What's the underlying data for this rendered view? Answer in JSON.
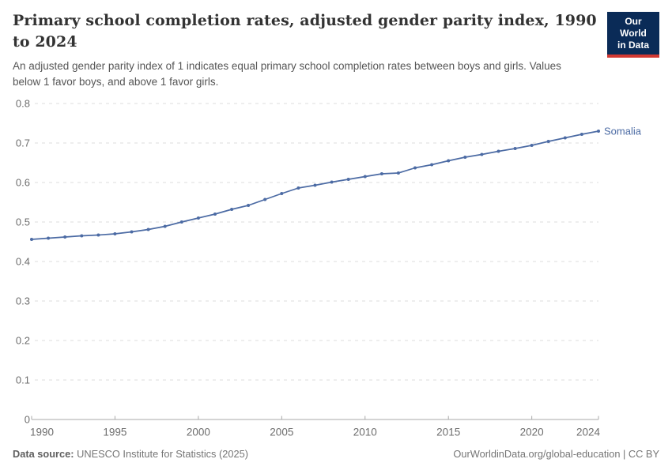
{
  "header": {
    "title": "Primary school completion rates, adjusted gender parity index, 1990 to 2024",
    "subtitle": "An adjusted gender parity index of 1 indicates equal primary school completion rates between boys and girls. Values below 1 favor boys, and above 1 favor girls.",
    "logo": {
      "line1": "Our World",
      "line2": "in Data",
      "bg_color": "#0A2B57",
      "accent_color": "#D13832"
    }
  },
  "chart_data": {
    "type": "line",
    "title": "Primary school completion rates, adjusted gender parity index, 1990 to 2024",
    "xlabel": "",
    "ylabel": "",
    "ylim": [
      0,
      0.8
    ],
    "yticks": [
      0,
      0.1,
      0.2,
      0.3,
      0.4,
      0.5,
      0.6,
      0.7,
      0.8
    ],
    "xticks": [
      1990,
      1995,
      2000,
      2005,
      2010,
      2015,
      2020,
      2024
    ],
    "grid": "horizontal-dashed",
    "legend_position": "end-of-line",
    "x": [
      1990,
      1991,
      1992,
      1993,
      1994,
      1995,
      1996,
      1997,
      1998,
      1999,
      2000,
      2001,
      2002,
      2003,
      2004,
      2005,
      2006,
      2007,
      2008,
      2009,
      2010,
      2011,
      2012,
      2013,
      2014,
      2015,
      2016,
      2017,
      2018,
      2019,
      2020,
      2021,
      2022,
      2023,
      2024
    ],
    "series": [
      {
        "name": "Somalia",
        "color": "#4C6BA4",
        "values": [
          0.456,
          0.459,
          0.462,
          0.465,
          0.467,
          0.47,
          0.475,
          0.481,
          0.489,
          0.5,
          0.51,
          0.52,
          0.532,
          0.542,
          0.557,
          0.572,
          0.586,
          0.593,
          0.601,
          0.608,
          0.615,
          0.622,
          0.624,
          0.637,
          0.645,
          0.655,
          0.664,
          0.671,
          0.679,
          0.686,
          0.694,
          0.704,
          0.713,
          0.722,
          0.73
        ]
      }
    ],
    "grid_color": "#dcdcdc",
    "axis_color": "#a9a9a9",
    "tick_label_color": "#6d6d6d"
  },
  "footer": {
    "source_label": "Data source:",
    "source_text": "UNESCO Institute for Statistics (2025)",
    "url": "OurWorldinData.org/global-education",
    "divider": " | ",
    "license": "CC BY"
  }
}
